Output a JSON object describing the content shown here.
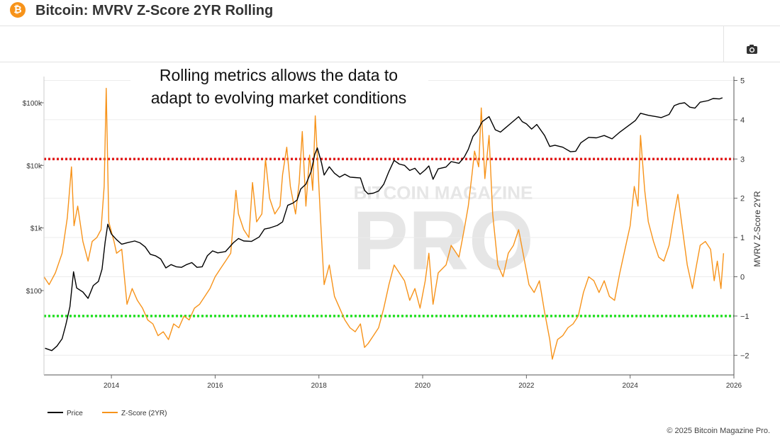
{
  "header": {
    "logo_symbol": "₿",
    "title": "Bitcoin: MVRV Z-Score 2YR Rolling"
  },
  "toolbar": {
    "camera_icon": "camera-icon"
  },
  "annotation": {
    "line1": "Rolling metrics allows the data to",
    "line2": "adapt to evolving market conditions"
  },
  "watermark": {
    "line1": "BITCOIN MAGAZINE",
    "line2": "PRO"
  },
  "footer": {
    "copyright": "© 2025 Bitcoin Magazine Pro."
  },
  "colors": {
    "price": "#000000",
    "zscore": "#f7931a",
    "upper_band": "#e21b1b",
    "lower_band": "#21e021"
  },
  "chart_data": {
    "type": "line",
    "title": "Bitcoin: MVRV Z-Score 2YR Rolling",
    "xlabel": "",
    "ylabel_left": "",
    "ylabel_right": "MVRV Z-Score 2YR",
    "x_range": [
      2012.7,
      2026.0
    ],
    "x_ticks": [
      "2014",
      "2016",
      "2018",
      "2020",
      "2022",
      "2024",
      "2026"
    ],
    "x_tick_values": [
      2014,
      2016,
      2018,
      2020,
      2022,
      2024,
      2026
    ],
    "y_left_scale": "log",
    "y_left_ticks": [
      "$100k",
      "$10k",
      "$1k",
      "$100"
    ],
    "y_left_tick_values": [
      100000,
      10000,
      1000,
      100
    ],
    "y_right_range": [
      -2.5,
      5.1
    ],
    "y_right_ticks": [
      "5",
      "4",
      "3",
      "2",
      "1",
      "0",
      "−1",
      "−2"
    ],
    "y_right_tick_values": [
      5,
      4,
      3,
      2,
      1,
      0,
      -1,
      -2
    ],
    "legend_position": "bottom-left",
    "reference_lines": [
      {
        "axis": "right",
        "value": 3.0,
        "color": "#e21b1b",
        "style": "dotted"
      },
      {
        "axis": "right",
        "value": -1.0,
        "color": "#21e021",
        "style": "dotted"
      }
    ],
    "series": [
      {
        "name": "Price",
        "axis": "left",
        "color": "#000000",
        "points": [
          [
            2012.72,
            12
          ],
          [
            2012.85,
            11
          ],
          [
            2012.95,
            13
          ],
          [
            2013.05,
            17
          ],
          [
            2013.12,
            28
          ],
          [
            2013.2,
            55
          ],
          [
            2013.27,
            200
          ],
          [
            2013.33,
            110
          ],
          [
            2013.45,
            95
          ],
          [
            2013.55,
            75
          ],
          [
            2013.65,
            120
          ],
          [
            2013.75,
            140
          ],
          [
            2013.82,
            220
          ],
          [
            2013.88,
            600
          ],
          [
            2013.93,
            1150
          ],
          [
            2014.0,
            800
          ],
          [
            2014.1,
            650
          ],
          [
            2014.2,
            550
          ],
          [
            2014.3,
            580
          ],
          [
            2014.45,
            620
          ],
          [
            2014.55,
            580
          ],
          [
            2014.65,
            500
          ],
          [
            2014.75,
            380
          ],
          [
            2014.85,
            360
          ],
          [
            2014.95,
            320
          ],
          [
            2015.05,
            230
          ],
          [
            2015.15,
            260
          ],
          [
            2015.25,
            240
          ],
          [
            2015.35,
            235
          ],
          [
            2015.45,
            260
          ],
          [
            2015.55,
            280
          ],
          [
            2015.65,
            235
          ],
          [
            2015.75,
            240
          ],
          [
            2015.85,
            360
          ],
          [
            2015.95,
            430
          ],
          [
            2016.05,
            400
          ],
          [
            2016.2,
            420
          ],
          [
            2016.35,
            580
          ],
          [
            2016.45,
            680
          ],
          [
            2016.55,
            620
          ],
          [
            2016.7,
            610
          ],
          [
            2016.85,
            720
          ],
          [
            2016.95,
            960
          ],
          [
            2017.05,
            1000
          ],
          [
            2017.2,
            1100
          ],
          [
            2017.3,
            1250
          ],
          [
            2017.4,
            2300
          ],
          [
            2017.5,
            2500
          ],
          [
            2017.58,
            2800
          ],
          [
            2017.65,
            4200
          ],
          [
            2017.75,
            5000
          ],
          [
            2017.85,
            8000
          ],
          [
            2017.92,
            15000
          ],
          [
            2017.97,
            19000
          ],
          [
            2018.05,
            11000
          ],
          [
            2018.1,
            7000
          ],
          [
            2018.2,
            9500
          ],
          [
            2018.3,
            7500
          ],
          [
            2018.4,
            6500
          ],
          [
            2018.5,
            7200
          ],
          [
            2018.6,
            6500
          ],
          [
            2018.7,
            6400
          ],
          [
            2018.8,
            6300
          ],
          [
            2018.88,
            4000
          ],
          [
            2018.95,
            3500
          ],
          [
            2019.05,
            3600
          ],
          [
            2019.15,
            3900
          ],
          [
            2019.25,
            5000
          ],
          [
            2019.35,
            8000
          ],
          [
            2019.45,
            12000
          ],
          [
            2019.55,
            10500
          ],
          [
            2019.65,
            10000
          ],
          [
            2019.75,
            8300
          ],
          [
            2019.85,
            9000
          ],
          [
            2019.95,
            7200
          ],
          [
            2020.05,
            8500
          ],
          [
            2020.12,
            9800
          ],
          [
            2020.2,
            6000
          ],
          [
            2020.3,
            8800
          ],
          [
            2020.45,
            9400
          ],
          [
            2020.55,
            11500
          ],
          [
            2020.7,
            10800
          ],
          [
            2020.8,
            13500
          ],
          [
            2020.88,
            18000
          ],
          [
            2020.97,
            29000
          ],
          [
            2021.05,
            35000
          ],
          [
            2021.15,
            50000
          ],
          [
            2021.28,
            60000
          ],
          [
            2021.4,
            37000
          ],
          [
            2021.5,
            34000
          ],
          [
            2021.6,
            40000
          ],
          [
            2021.7,
            47000
          ],
          [
            2021.85,
            60000
          ],
          [
            2021.92,
            50000
          ],
          [
            2022.0,
            46000
          ],
          [
            2022.1,
            38000
          ],
          [
            2022.2,
            45000
          ],
          [
            2022.35,
            30000
          ],
          [
            2022.45,
            20000
          ],
          [
            2022.55,
            21000
          ],
          [
            2022.7,
            19500
          ],
          [
            2022.85,
            16500
          ],
          [
            2022.95,
            16800
          ],
          [
            2023.05,
            23000
          ],
          [
            2023.2,
            28000
          ],
          [
            2023.35,
            27500
          ],
          [
            2023.5,
            30000
          ],
          [
            2023.65,
            26500
          ],
          [
            2023.8,
            34000
          ],
          [
            2023.95,
            42000
          ],
          [
            2024.1,
            52000
          ],
          [
            2024.2,
            68000
          ],
          [
            2024.35,
            63000
          ],
          [
            2024.5,
            60000
          ],
          [
            2024.6,
            58000
          ],
          [
            2024.75,
            65000
          ],
          [
            2024.85,
            90000
          ],
          [
            2024.95,
            97000
          ],
          [
            2025.05,
            100000
          ],
          [
            2025.15,
            85000
          ],
          [
            2025.25,
            82000
          ],
          [
            2025.35,
            102000
          ],
          [
            2025.5,
            108000
          ],
          [
            2025.6,
            117000
          ],
          [
            2025.72,
            115000
          ],
          [
            2025.78,
            120000
          ]
        ]
      },
      {
        "name": "Z-Score (2YR)",
        "axis": "right",
        "color": "#f7931a",
        "points": [
          [
            2012.7,
            0.0
          ],
          [
            2012.8,
            -0.2
          ],
          [
            2012.92,
            0.1
          ],
          [
            2013.05,
            0.6
          ],
          [
            2013.15,
            1.5
          ],
          [
            2013.23,
            2.8
          ],
          [
            2013.28,
            1.3
          ],
          [
            2013.35,
            1.8
          ],
          [
            2013.45,
            0.9
          ],
          [
            2013.55,
            0.4
          ],
          [
            2013.63,
            0.9
          ],
          [
            2013.72,
            1.0
          ],
          [
            2013.8,
            1.2
          ],
          [
            2013.86,
            2.3
          ],
          [
            2013.9,
            4.8
          ],
          [
            2013.95,
            1.4
          ],
          [
            2014.05,
            0.9
          ],
          [
            2014.1,
            0.6
          ],
          [
            2014.2,
            0.7
          ],
          [
            2014.3,
            -0.7
          ],
          [
            2014.4,
            -0.3
          ],
          [
            2014.5,
            -0.6
          ],
          [
            2014.6,
            -0.8
          ],
          [
            2014.7,
            -1.1
          ],
          [
            2014.8,
            -1.2
          ],
          [
            2014.9,
            -1.5
          ],
          [
            2015.0,
            -1.4
          ],
          [
            2015.1,
            -1.6
          ],
          [
            2015.2,
            -1.2
          ],
          [
            2015.3,
            -1.3
          ],
          [
            2015.4,
            -1.0
          ],
          [
            2015.5,
            -1.1
          ],
          [
            2015.6,
            -0.8
          ],
          [
            2015.7,
            -0.7
          ],
          [
            2015.8,
            -0.5
          ],
          [
            2015.9,
            -0.3
          ],
          [
            2016.0,
            0.0
          ],
          [
            2016.1,
            0.2
          ],
          [
            2016.2,
            0.4
          ],
          [
            2016.3,
            0.6
          ],
          [
            2016.4,
            2.2
          ],
          [
            2016.45,
            1.6
          ],
          [
            2016.55,
            1.2
          ],
          [
            2016.65,
            1.0
          ],
          [
            2016.72,
            2.4
          ],
          [
            2016.8,
            1.4
          ],
          [
            2016.9,
            1.6
          ],
          [
            2016.97,
            3.0
          ],
          [
            2017.05,
            2.0
          ],
          [
            2017.15,
            1.6
          ],
          [
            2017.25,
            1.8
          ],
          [
            2017.3,
            2.6
          ],
          [
            2017.38,
            3.3
          ],
          [
            2017.45,
            2.3
          ],
          [
            2017.55,
            1.6
          ],
          [
            2017.62,
            2.4
          ],
          [
            2017.68,
            3.7
          ],
          [
            2017.75,
            1.8
          ],
          [
            2017.82,
            3.1
          ],
          [
            2017.88,
            2.2
          ],
          [
            2017.93,
            4.1
          ],
          [
            2017.98,
            2.8
          ],
          [
            2018.05,
            1.0
          ],
          [
            2018.1,
            -0.2
          ],
          [
            2018.2,
            0.3
          ],
          [
            2018.3,
            -0.5
          ],
          [
            2018.4,
            -0.8
          ],
          [
            2018.5,
            -1.1
          ],
          [
            2018.6,
            -1.3
          ],
          [
            2018.7,
            -1.4
          ],
          [
            2018.8,
            -1.2
          ],
          [
            2018.88,
            -1.8
          ],
          [
            2018.95,
            -1.7
          ],
          [
            2019.05,
            -1.5
          ],
          [
            2019.15,
            -1.3
          ],
          [
            2019.25,
            -0.8
          ],
          [
            2019.35,
            -0.2
          ],
          [
            2019.45,
            0.3
          ],
          [
            2019.55,
            0.1
          ],
          [
            2019.65,
            -0.1
          ],
          [
            2019.75,
            -0.6
          ],
          [
            2019.85,
            -0.3
          ],
          [
            2019.95,
            -0.8
          ],
          [
            2020.05,
            -0.1
          ],
          [
            2020.12,
            0.6
          ],
          [
            2020.2,
            -0.7
          ],
          [
            2020.3,
            0.1
          ],
          [
            2020.45,
            0.3
          ],
          [
            2020.55,
            0.8
          ],
          [
            2020.7,
            0.5
          ],
          [
            2020.8,
            1.2
          ],
          [
            2020.88,
            1.8
          ],
          [
            2020.95,
            2.6
          ],
          [
            2021.0,
            3.2
          ],
          [
            2021.08,
            2.8
          ],
          [
            2021.13,
            4.3
          ],
          [
            2021.2,
            2.5
          ],
          [
            2021.28,
            3.6
          ],
          [
            2021.35,
            1.6
          ],
          [
            2021.45,
            0.3
          ],
          [
            2021.55,
            0.0
          ],
          [
            2021.65,
            0.6
          ],
          [
            2021.75,
            0.8
          ],
          [
            2021.85,
            1.2
          ],
          [
            2021.95,
            0.5
          ],
          [
            2022.05,
            -0.2
          ],
          [
            2022.15,
            -0.4
          ],
          [
            2022.25,
            -0.1
          ],
          [
            2022.35,
            -0.9
          ],
          [
            2022.45,
            -1.6
          ],
          [
            2022.5,
            -2.1
          ],
          [
            2022.6,
            -1.6
          ],
          [
            2022.7,
            -1.5
          ],
          [
            2022.8,
            -1.3
          ],
          [
            2022.9,
            -1.2
          ],
          [
            2023.0,
            -1.0
          ],
          [
            2023.1,
            -0.4
          ],
          [
            2023.2,
            0.0
          ],
          [
            2023.3,
            -0.1
          ],
          [
            2023.4,
            -0.4
          ],
          [
            2023.5,
            -0.1
          ],
          [
            2023.6,
            -0.5
          ],
          [
            2023.7,
            -0.6
          ],
          [
            2023.8,
            0.1
          ],
          [
            2023.9,
            0.7
          ],
          [
            2024.0,
            1.3
          ],
          [
            2024.08,
            2.3
          ],
          [
            2024.15,
            1.8
          ],
          [
            2024.2,
            3.6
          ],
          [
            2024.28,
            2.2
          ],
          [
            2024.35,
            1.4
          ],
          [
            2024.45,
            0.9
          ],
          [
            2024.55,
            0.5
          ],
          [
            2024.65,
            0.4
          ],
          [
            2024.75,
            0.8
          ],
          [
            2024.85,
            1.6
          ],
          [
            2024.92,
            2.1
          ],
          [
            2025.0,
            1.3
          ],
          [
            2025.1,
            0.3
          ],
          [
            2025.2,
            -0.3
          ],
          [
            2025.28,
            0.3
          ],
          [
            2025.35,
            0.8
          ],
          [
            2025.45,
            0.9
          ],
          [
            2025.55,
            0.7
          ],
          [
            2025.62,
            -0.1
          ],
          [
            2025.68,
            0.4
          ],
          [
            2025.75,
            -0.3
          ],
          [
            2025.8,
            0.6
          ]
        ]
      }
    ]
  }
}
